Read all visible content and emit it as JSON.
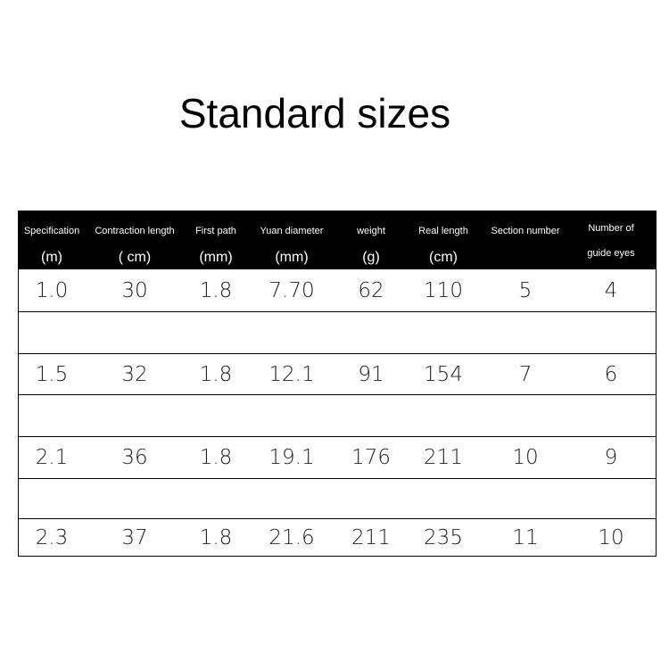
{
  "title": "Standard sizes",
  "headers": [
    {
      "line1": "Specification",
      "line2": "(m)"
    },
    {
      "line1": "Contraction length",
      "line2": "( cm)"
    },
    {
      "line1": "First path",
      "line2": "(mm)"
    },
    {
      "line1": "Yuan diameter",
      "line2": "(mm)"
    },
    {
      "line1": "weight",
      "line2": "(g)"
    },
    {
      "line1": "Real length",
      "line2": "(cm)"
    },
    {
      "line1": "Section number",
      "line2": ""
    },
    {
      "line1": "Number of",
      "line2": "guide eyes"
    }
  ],
  "rows": [
    [
      "1.0",
      "30",
      "1.8",
      "7.70",
      "62",
      "110",
      "5",
      "4"
    ],
    [],
    [
      "1.5",
      "32",
      "1.8",
      "12.1",
      "91",
      "154",
      "7",
      "6"
    ],
    [],
    [
      "2.1",
      "36",
      "1.8",
      "19.1",
      "176",
      "211",
      "10",
      "9"
    ],
    [],
    [
      "2.3",
      "37",
      "1.8",
      "21.6",
      "211",
      "235",
      "11",
      "10"
    ]
  ]
}
